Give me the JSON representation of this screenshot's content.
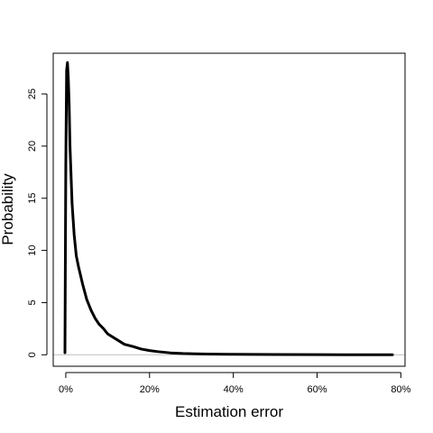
{
  "chart_data": {
    "type": "line",
    "title": "",
    "xlabel": "Estimation error",
    "ylabel": "Probability",
    "xlim": [
      -0.03,
      0.81
    ],
    "ylim": [
      -1.1,
      28.9
    ],
    "x_ticks": [
      0,
      0.2,
      0.4,
      0.6,
      0.8
    ],
    "x_tick_labels": [
      "0%",
      "20%",
      "40%",
      "60%",
      "80%"
    ],
    "y_ticks": [
      0,
      5,
      10,
      15,
      20,
      25
    ],
    "y_tick_labels": [
      "0",
      "5",
      "10",
      "15",
      "20",
      "25"
    ],
    "grid": false,
    "legend": "none",
    "line_color": "#000000",
    "baseline_color": "#bebebe",
    "series": [
      {
        "x": [
          -0.002,
          0.0,
          0.002,
          0.004,
          0.006,
          0.008,
          0.01,
          0.015,
          0.02,
          0.025,
          0.03,
          0.04,
          0.05,
          0.06,
          0.07,
          0.08,
          0.09,
          0.1,
          0.12,
          0.14,
          0.16,
          0.18,
          0.2,
          0.22,
          0.25,
          0.28,
          0.31,
          0.34,
          0.4,
          0.5,
          0.6,
          0.7,
          0.78
        ],
        "y": [
          0.2,
          18.0,
          27.3,
          28.0,
          26.5,
          24.0,
          20.0,
          14.5,
          11.5,
          9.5,
          8.5,
          6.8,
          5.3,
          4.3,
          3.5,
          2.9,
          2.5,
          2.0,
          1.5,
          1.0,
          0.8,
          0.55,
          0.4,
          0.3,
          0.18,
          0.12,
          0.09,
          0.07,
          0.04,
          0.02,
          0.01,
          0.005,
          0.002
        ]
      }
    ]
  }
}
